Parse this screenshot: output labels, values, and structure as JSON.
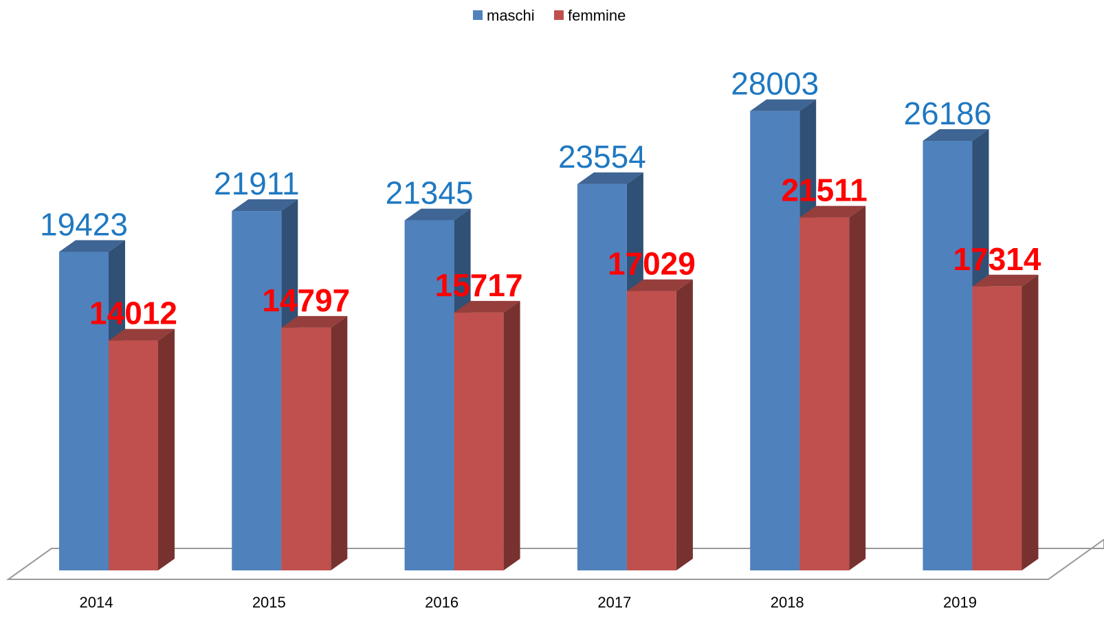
{
  "chart_data": {
    "type": "bar3d",
    "categories": [
      "2014",
      "2015",
      "2016",
      "2017",
      "2018",
      "2019"
    ],
    "series": [
      {
        "name": "maschi",
        "color": "#4f81bd",
        "label_color": "#1f78c1",
        "values": [
          19423,
          21911,
          21345,
          23554,
          28003,
          26186
        ]
      },
      {
        "name": "femmine",
        "color": "#c0504d",
        "label_color": "#ff0000",
        "values": [
          14012,
          14797,
          15717,
          17029,
          21511,
          17314
        ]
      }
    ],
    "ylim": [
      0,
      30000
    ],
    "legend": "top"
  }
}
